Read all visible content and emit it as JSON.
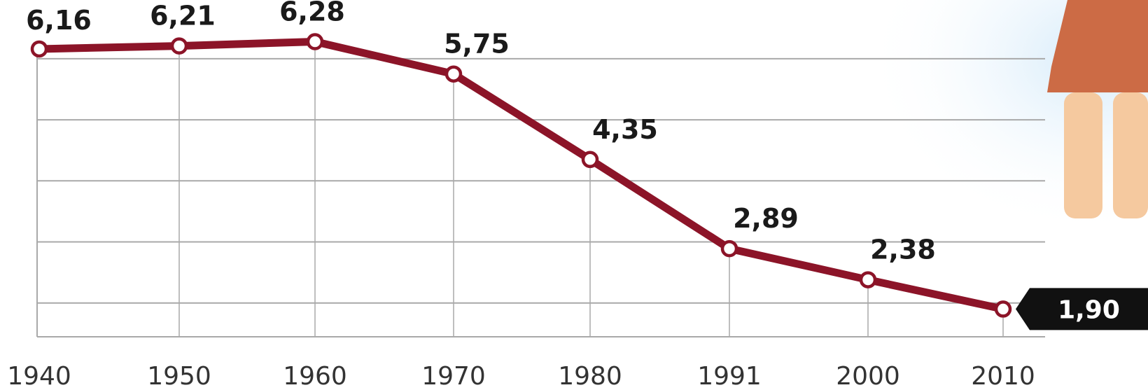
{
  "chart_data": {
    "type": "line",
    "title": "",
    "xlabel": "",
    "ylabel": "",
    "categories": [
      "1940",
      "1950",
      "1960",
      "1970",
      "1980",
      "1991",
      "2000",
      "2010"
    ],
    "series": [
      {
        "values": [
          6.16,
          6.21,
          6.28,
          5.75,
          4.35,
          2.89,
          2.38,
          1.9
        ],
        "labels": [
          "6,16",
          "6,21",
          "6,28",
          "5,75",
          "4,35",
          "2,89",
          "2,38",
          "1,90"
        ]
      }
    ],
    "ylim": [
      1.0,
      6.5
    ],
    "grid": true,
    "highlighted_point": {
      "category": "2010",
      "label": "1,90"
    }
  },
  "colors": {
    "line": "#8c1428",
    "marker_fill": "#ffffff",
    "grid": "#a9a9a9",
    "callout_bg": "#111111",
    "skirt": "#cc6b45",
    "legs": "#f5c99f",
    "sky": "#e3f1fb"
  },
  "decoration": {
    "icon": "woman-figure-icon"
  }
}
